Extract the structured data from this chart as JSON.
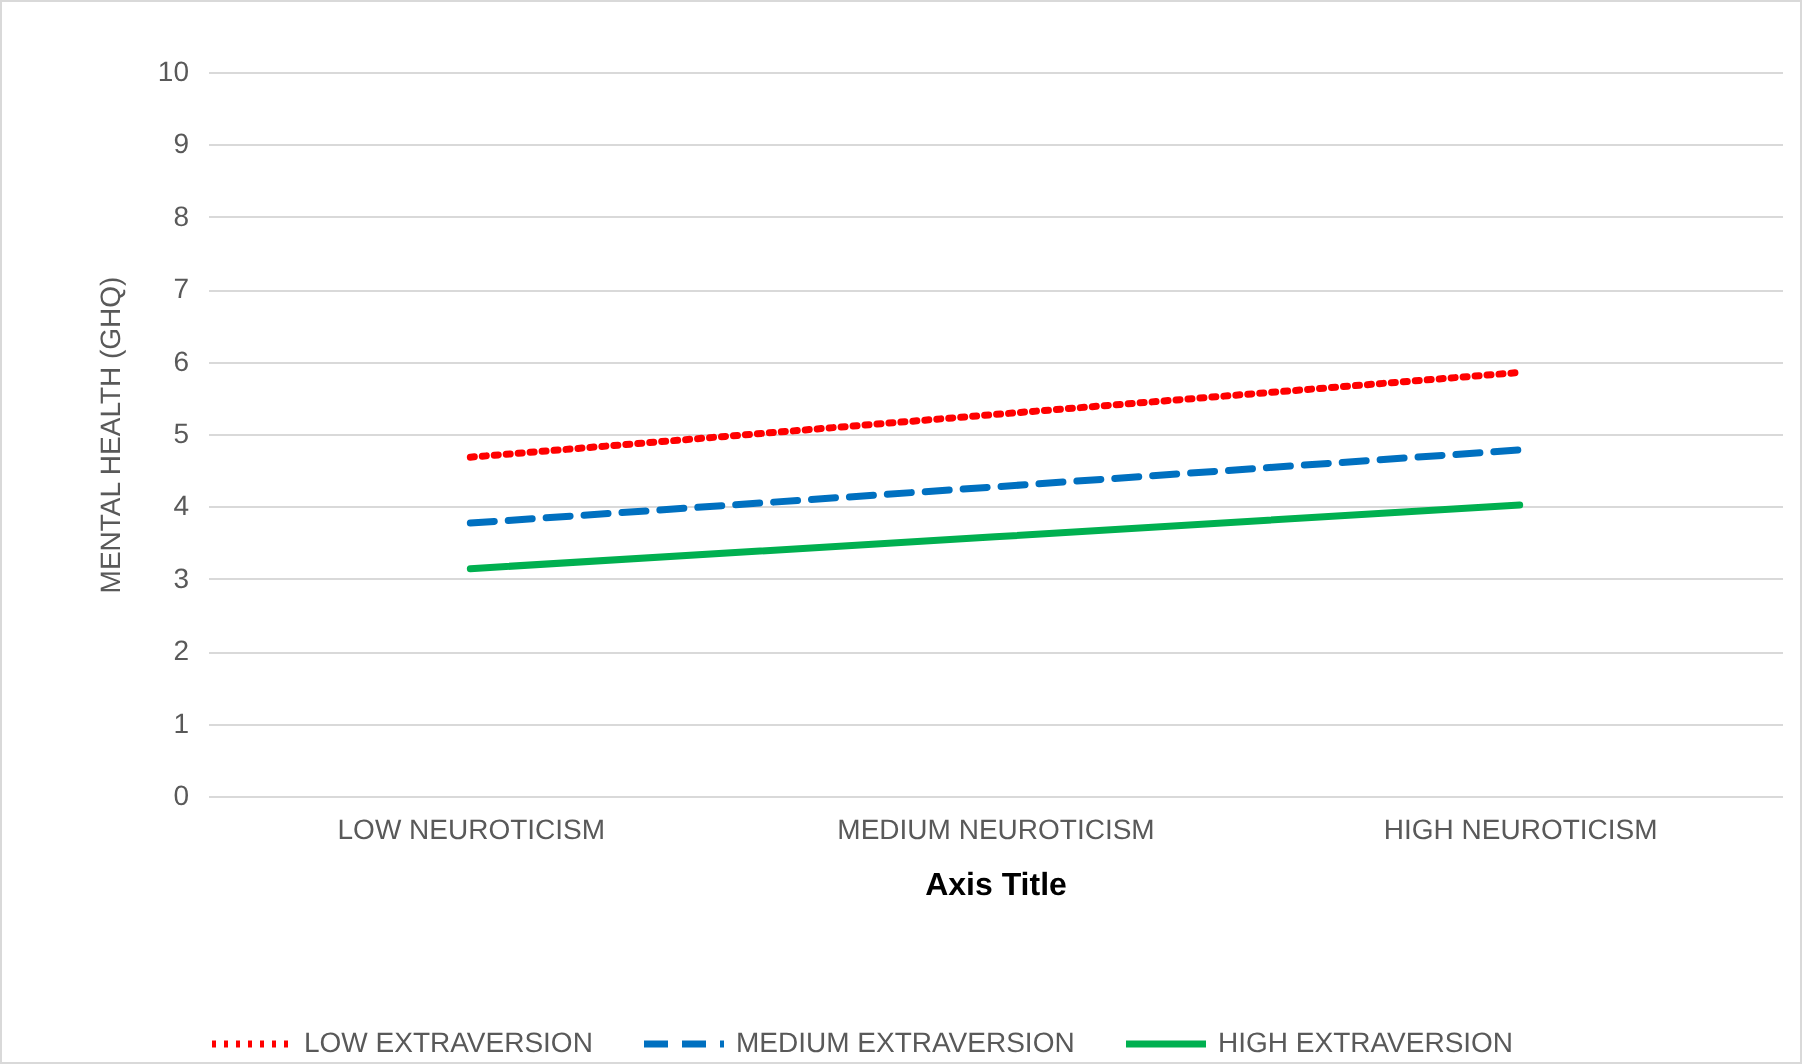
{
  "chart_data": {
    "type": "line",
    "xlabel": "Axis Title",
    "ylabel": "MENTAL HEALTH (GHQ)",
    "categories": [
      "LOW NEUROTICISM",
      "MEDIUM NEUROTICISM",
      "HIGH NEUROTICISM"
    ],
    "series": [
      {
        "name": "LOW EXTRAVERSION",
        "color": "#ff0000",
        "line_style": "dotted",
        "values": [
          4.68,
          5.27,
          5.85
        ]
      },
      {
        "name": "MEDIUM EXTRAVERSION",
        "color": "#0070c0",
        "line_style": "dashed",
        "values": [
          3.77,
          4.27,
          4.78
        ]
      },
      {
        "name": "HIGH EXTRAVERSION",
        "color": "#00b050",
        "line_style": "solid",
        "values": [
          3.14,
          3.58,
          4.02
        ]
      }
    ],
    "ylim": [
      0,
      10
    ],
    "yticks": [
      0,
      1,
      2,
      3,
      4,
      5,
      6,
      7,
      8,
      9,
      10
    ],
    "grid": "y",
    "legend": "bottom"
  }
}
